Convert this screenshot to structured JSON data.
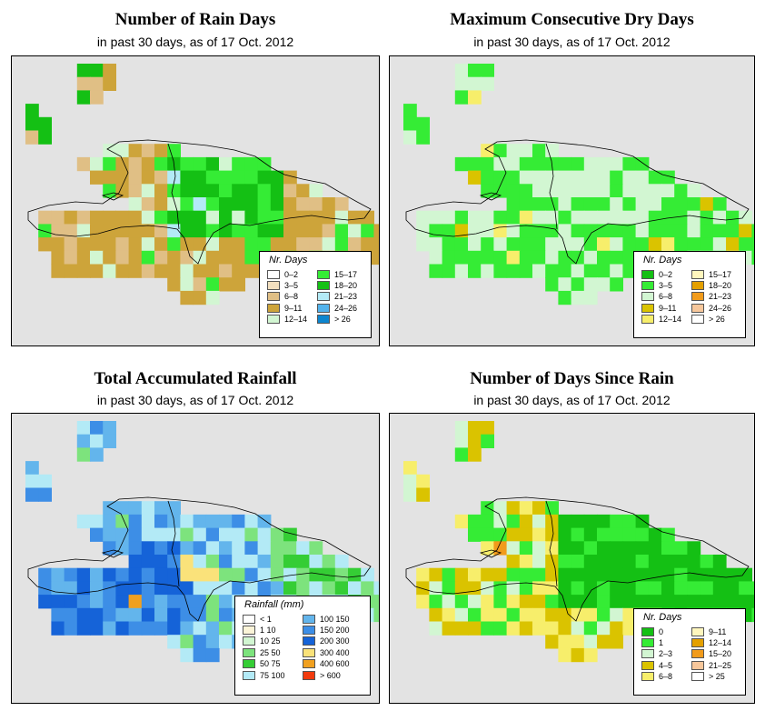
{
  "panels": [
    {
      "id": "rain_days",
      "title": "Number of Rain Days",
      "subtitle": "in past 30 days, as of  17 Oct. 2012",
      "legend": {
        "title": "Nr. Days",
        "items": [
          {
            "label": "0–2",
            "color": "#ffffff"
          },
          {
            "label": "3–5",
            "color": "#f2dfbf"
          },
          {
            "label": "6–8",
            "color": "#e0bf85"
          },
          {
            "label": "9–11",
            "color": "#cda43a"
          },
          {
            "label": "12–14",
            "color": "#d2f6d2"
          },
          {
            "label": "15–17",
            "color": "#35ec35"
          },
          {
            "label": "18–20",
            "color": "#14c014"
          },
          {
            "label": "21–23",
            "color": "#b3eaf6"
          },
          {
            "label": "24–26",
            "color": "#53b3ec"
          },
          {
            "label": "> 26",
            "color": "#0c86cf"
          }
        ]
      }
    },
    {
      "id": "max_dry_days",
      "title": "Maximum Consecutive Dry Days",
      "subtitle": "in past 30 days, as of  17 Oct. 2012",
      "legend": {
        "title": "Nr. Days",
        "items": [
          {
            "label": "0–2",
            "color": "#14c014"
          },
          {
            "label": "3–5",
            "color": "#35ec35"
          },
          {
            "label": "6–8",
            "color": "#d2f6d2"
          },
          {
            "label": "9–11",
            "color": "#dac300"
          },
          {
            "label": "12–14",
            "color": "#f7ee6b"
          },
          {
            "label": "15–17",
            "color": "#fff6bd"
          },
          {
            "label": "18–20",
            "color": "#e4a000"
          },
          {
            "label": "21–23",
            "color": "#f19b1b"
          },
          {
            "label": "24–26",
            "color": "#f7c79b"
          },
          {
            "label": "> 26",
            "color": "#ffffff"
          }
        ]
      }
    },
    {
      "id": "total_rainfall",
      "title": "Total Accumulated Rainfall",
      "subtitle": "in past 30 days, as of  17 Oct. 2012",
      "legend": {
        "title": "Rainfall (mm)",
        "items": [
          {
            "label": "< 1",
            "color": "#ffffff"
          },
          {
            "label": "1    10",
            "color": "#fbf4d8"
          },
          {
            "label": "10    25",
            "color": "#d2f6d2"
          },
          {
            "label": "25    50",
            "color": "#7de37d"
          },
          {
            "label": "50    75",
            "color": "#35cd35"
          },
          {
            "label": "75    100",
            "color": "#b3eaf6"
          },
          {
            "label": "100    150",
            "color": "#63b5ec"
          },
          {
            "label": "150    200",
            "color": "#3d8ee6"
          },
          {
            "label": "200    300",
            "color": "#1563d8"
          },
          {
            "label": "300    400",
            "color": "#fae27a"
          },
          {
            "label": "400    600",
            "color": "#f0a020"
          },
          {
            "label": "> 600",
            "color": "#f23b0e"
          }
        ]
      }
    },
    {
      "id": "days_since_rain",
      "title": "Number of Days Since Rain",
      "subtitle": "in past 30 days, as of  17 Oct. 2012",
      "legend": {
        "title": "Nr. Days",
        "items": [
          {
            "label": "0",
            "color": "#14c014"
          },
          {
            "label": "1",
            "color": "#35ec35"
          },
          {
            "label": "2–3",
            "color": "#d2f6d2"
          },
          {
            "label": "4–5",
            "color": "#dac300"
          },
          {
            "label": "6–8",
            "color": "#f7ee6b"
          },
          {
            "label": "9–11",
            "color": "#fff6bd"
          },
          {
            "label": "12–14",
            "color": "#e4a000"
          },
          {
            "label": "15–20",
            "color": "#f19b1b"
          },
          {
            "label": "21–25",
            "color": "#f7c79b"
          },
          {
            "label": "> 25",
            "color": "#ffffff"
          }
        ]
      }
    }
  ]
}
